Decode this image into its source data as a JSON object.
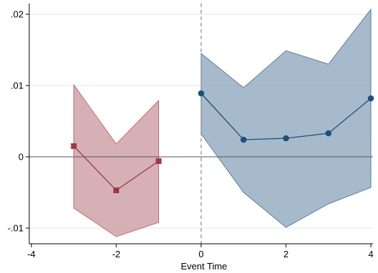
{
  "chart_data": {
    "type": "line",
    "title": "",
    "xlabel": "Event Time",
    "ylabel": "",
    "xlim": [
      -4.05,
      4.05
    ],
    "ylim": [
      -0.0122,
      0.0215
    ],
    "x_ticks": [
      {
        "value": -4,
        "label": "-4"
      },
      {
        "value": -2,
        "label": "-2"
      },
      {
        "value": 0,
        "label": "0"
      },
      {
        "value": 2,
        "label": "2"
      },
      {
        "value": 4,
        "label": "4"
      }
    ],
    "y_ticks": [
      {
        "value": -0.01,
        "label": "-.01"
      },
      {
        "value": 0,
        "label": "0"
      },
      {
        "value": 0.01,
        "label": ".01"
      },
      {
        "value": 0.02,
        "label": ".02"
      }
    ],
    "grid": true,
    "zero_line": true,
    "event_line_x": 0,
    "legend": "none",
    "series": [
      {
        "marker": "square",
        "color": "#9c3a44",
        "band_color": "#c9959c",
        "x": [
          -3,
          -2,
          -1
        ],
        "y": [
          0.0015,
          -0.0047,
          -0.0006
        ],
        "ci_upper": [
          0.0101,
          0.0018,
          0.0079
        ],
        "ci_lower": [
          -0.0072,
          -0.0112,
          -0.0092
        ]
      },
      {
        "marker": "circle",
        "color": "#1f4e79",
        "band_color": "#8aa3bb",
        "x": [
          0,
          1,
          2,
          3,
          4
        ],
        "y": [
          0.0089,
          0.0024,
          0.0026,
          0.0033,
          0.0082
        ],
        "ci_upper": [
          0.0145,
          0.0097,
          0.0149,
          0.013,
          0.0207
        ],
        "ci_lower": [
          0.0032,
          -0.005,
          -0.0099,
          -0.0066,
          -0.0043
        ]
      }
    ]
  }
}
